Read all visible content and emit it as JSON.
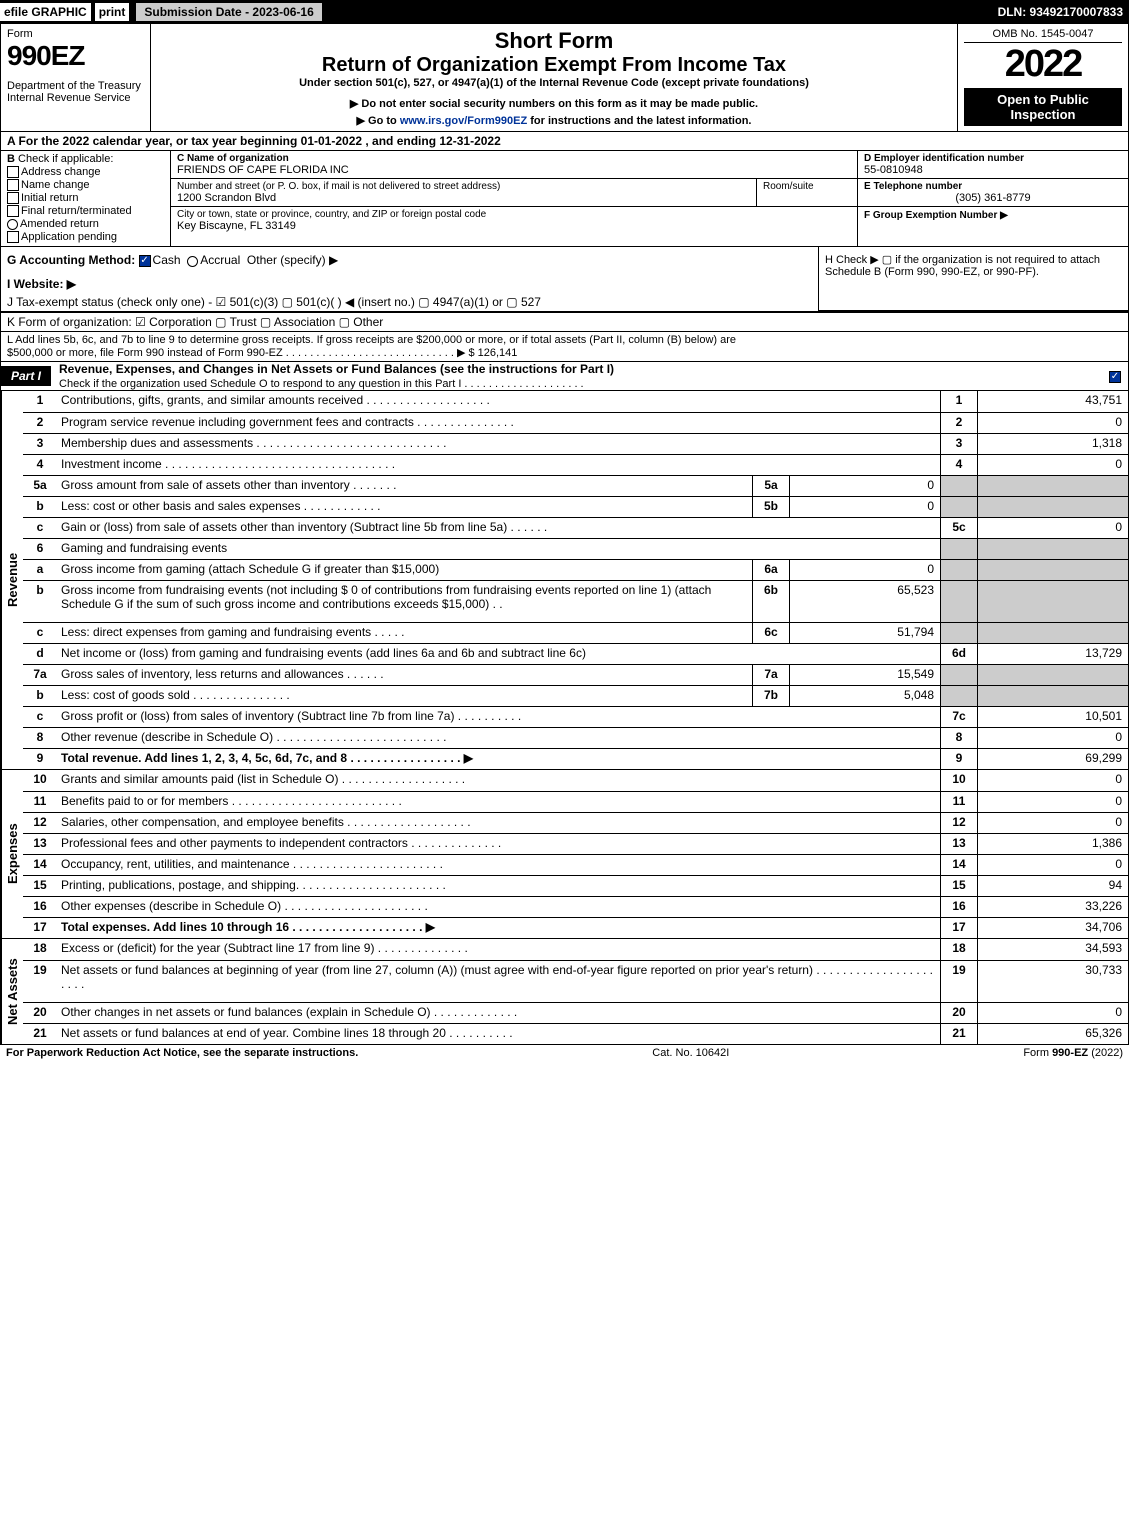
{
  "header": {
    "efile": "efile",
    "graphic": "GRAPHIC",
    "print": "print",
    "submission_label": "Submission Date - 2023-06-16",
    "dln": "DLN: 93492170007833"
  },
  "topbox": {
    "form_word": "Form",
    "form_num": "990EZ",
    "dept1": "Department of the Treasury",
    "dept2": "Internal Revenue Service",
    "short_form": "Short Form",
    "title": "Return of Organization Exempt From Income Tax",
    "under": "Under section 501(c), 527, or 4947(a)(1) of the Internal Revenue Code (except private foundations)",
    "warn": "▶ Do not enter social security numbers on this form as it may be made public.",
    "goto_pre": "▶ Go to ",
    "goto_link": "www.irs.gov/Form990EZ",
    "goto_post": " for instructions and the latest information.",
    "omb": "OMB No. 1545-0047",
    "year": "2022",
    "insp1": "Open to Public",
    "insp2": "Inspection"
  },
  "A": "A  For the 2022 calendar year, or tax year beginning 01-01-2022 , and ending 12-31-2022",
  "B": {
    "label": "B",
    "check_if": "Check if applicable:",
    "items": [
      {
        "label": "Address change",
        "checked": false
      },
      {
        "label": "Name change",
        "checked": false
      },
      {
        "label": "Initial return",
        "checked": false
      },
      {
        "label": "Final return/terminated",
        "checked": false
      },
      {
        "label": "Amended return",
        "checked": false
      },
      {
        "label": "Application pending",
        "checked": false
      }
    ]
  },
  "C": {
    "name_label": "C Name of organization",
    "name": "FRIENDS OF CAPE FLORIDA INC",
    "street_label": "Number and street (or P. O. box, if mail is not delivered to street address)",
    "street": "1200 Scrandon Blvd",
    "room_label": "Room/suite",
    "city_label": "City or town, state or province, country, and ZIP or foreign postal code",
    "city": "Key Biscayne, FL  33149"
  },
  "D": {
    "label": "D Employer identification number",
    "value": "55-0810948"
  },
  "E": {
    "label": "E Telephone number",
    "value": "(305) 361-8779"
  },
  "F": {
    "label": "F Group Exemption Number   ▶",
    "value": ""
  },
  "G": {
    "label": "G Accounting Method:",
    "cash": "Cash",
    "accrual": "Accrual",
    "other": "Other (specify) ▶"
  },
  "H": "H   Check ▶  ▢  if the organization is not required to attach Schedule B (Form 990, 990-EZ, or 990-PF).",
  "I": "I Website: ▶",
  "J": "J Tax-exempt status (check only one) -  ☑ 501(c)(3)  ▢ 501(c)(  ) ◀ (insert no.)  ▢ 4947(a)(1) or  ▢ 527",
  "K": "K Form of organization:   ☑ Corporation   ▢ Trust   ▢ Association   ▢ Other",
  "L": {
    "text1": "L Add lines 5b, 6c, and 7b to line 9 to determine gross receipts. If gross receipts are $200,000 or more, or if total assets (Part II, column (B) below) are",
    "text2": "$500,000 or more, file Form 990 instead of Form 990-EZ  .  .  .  .  .  .  .  .  .  .  .  .  .  .  .  .  .  .  .  .  .  .  .  .  .  .  .  .  ▶ $ 126,141"
  },
  "partI": {
    "tag": "Part I",
    "title": "Revenue, Expenses, and Changes in Net Assets or Fund Balances (see the instructions for Part I)",
    "sub": "Check if the organization used Schedule O to respond to any question in this Part I  .  .  .  .  .  .  .  .  .  .  .  .  .  .  .  .  .  .  .  .",
    "checked": true
  },
  "revenue_label": "Revenue",
  "expenses_label": "Expenses",
  "netassets_label": "Net Assets",
  "rows_rev": [
    {
      "n": "1",
      "desc": "Contributions, gifts, grants, and similar amounts received  .  .  .  .  .  .  .  .  .  .  .  .  .  .  .  .  .  .  .",
      "ln": "1",
      "val": "43,751"
    },
    {
      "n": "2",
      "desc": "Program service revenue including government fees and contracts  .  .  .  .  .  .  .  .  .  .  .  .  .  .  .",
      "ln": "2",
      "val": "0"
    },
    {
      "n": "3",
      "desc": "Membership dues and assessments  .  .  .  .  .  .  .  .  .  .  .  .  .  .  .  .  .  .  .  .  .  .  .  .  .  .  .  .  .",
      "ln": "3",
      "val": "1,318"
    },
    {
      "n": "4",
      "desc": "Investment income  .  .  .  .  .  .  .  .  .  .  .  .  .  .  .  .  .  .  .  .  .  .  .  .  .  .  .  .  .  .  .  .  .  .  .",
      "ln": "4",
      "val": "0"
    },
    {
      "n": "5a",
      "desc": "Gross amount from sale of assets other than inventory  .  .  .  .  .  .  .",
      "sub": "5a",
      "subval": "0",
      "ln": "",
      "val": "",
      "shade": true
    },
    {
      "n": "b",
      "desc": "Less: cost or other basis and sales expenses  .  .  .  .  .  .  .  .  .  .  .  .",
      "sub": "5b",
      "subval": "0",
      "ln": "",
      "val": "",
      "shade": true
    },
    {
      "n": "c",
      "desc": "Gain or (loss) from sale of assets other than inventory (Subtract line 5b from line 5a)  .  .  .  .  .  .",
      "ln": "5c",
      "val": "0"
    },
    {
      "n": "6",
      "desc": "Gaming and fundraising events",
      "ln": "",
      "val": "",
      "shade": true
    },
    {
      "n": "a",
      "desc": "Gross income from gaming (attach Schedule G if greater than $15,000)",
      "sub": "6a",
      "subval": "0",
      "ln": "",
      "val": "",
      "shade": true
    },
    {
      "n": "b",
      "desc": "Gross income from fundraising events (not including $ 0 of contributions from fundraising events reported on line 1) (attach Schedule G if the sum of such gross income and contributions exceeds $15,000)    .  .",
      "sub": "6b",
      "subval": "65,523",
      "ln": "",
      "val": "",
      "shade": true,
      "tallrow": true
    },
    {
      "n": "c",
      "desc": "Less: direct expenses from gaming and fundraising events   .  .  .  .  .",
      "sub": "6c",
      "subval": "51,794",
      "ln": "",
      "val": "",
      "shade": true
    },
    {
      "n": "d",
      "desc": "Net income or (loss) from gaming and fundraising events (add lines 6a and 6b and subtract line 6c)",
      "ln": "6d",
      "val": "13,729"
    },
    {
      "n": "7a",
      "desc": "Gross sales of inventory, less returns and allowances  .  .  .  .  .  .",
      "sub": "7a",
      "subval": "15,549",
      "ln": "",
      "val": "",
      "shade": true
    },
    {
      "n": "b",
      "desc": "Less: cost of goods sold       .  .  .  .  .  .  .  .  .  .  .  .  .  .  .",
      "sub": "7b",
      "subval": "5,048",
      "ln": "",
      "val": "",
      "shade": true
    },
    {
      "n": "c",
      "desc": "Gross profit or (loss) from sales of inventory (Subtract line 7b from line 7a)  .  .  .  .  .  .  .  .  .  .",
      "ln": "7c",
      "val": "10,501"
    },
    {
      "n": "8",
      "desc": "Other revenue (describe in Schedule O)  .  .  .  .  .  .  .  .  .  .  .  .  .  .  .  .  .  .  .  .  .  .  .  .  .  .",
      "ln": "8",
      "val": "0"
    },
    {
      "n": "9",
      "desc": "Total revenue. Add lines 1, 2, 3, 4, 5c, 6d, 7c, and 8   .  .  .  .  .  .  .  .  .  .  .  .  .  .  .  .  .   ▶",
      "ln": "9",
      "val": "69,299",
      "bold": true
    }
  ],
  "rows_exp": [
    {
      "n": "10",
      "desc": "Grants and similar amounts paid (list in Schedule O)  .  .  .  .  .  .  .  .  .  .  .  .  .  .  .  .  .  .  .",
      "ln": "10",
      "val": "0"
    },
    {
      "n": "11",
      "desc": "Benefits paid to or for members      .  .  .  .  .  .  .  .  .  .  .  .  .  .  .  .  .  .  .  .  .  .  .  .  .  .",
      "ln": "11",
      "val": "0"
    },
    {
      "n": "12",
      "desc": "Salaries, other compensation, and employee benefits  .  .  .  .  .  .  .  .  .  .  .  .  .  .  .  .  .  .  .",
      "ln": "12",
      "val": "0"
    },
    {
      "n": "13",
      "desc": "Professional fees and other payments to independent contractors  .  .  .  .  .  .  .  .  .  .  .  .  .  .",
      "ln": "13",
      "val": "1,386"
    },
    {
      "n": "14",
      "desc": "Occupancy, rent, utilities, and maintenance  .  .  .  .  .  .  .  .  .  .  .  .  .  .  .  .  .  .  .  .  .  .  .",
      "ln": "14",
      "val": "0"
    },
    {
      "n": "15",
      "desc": "Printing, publications, postage, and shipping.  .  .  .  .  .  .  .  .  .  .  .  .  .  .  .  .  .  .  .  .  .  .",
      "ln": "15",
      "val": "94"
    },
    {
      "n": "16",
      "desc": "Other expenses (describe in Schedule O)       .  .  .  .  .  .  .  .  .  .  .  .  .  .  .  .  .  .  .  .  .  .",
      "ln": "16",
      "val": "33,226"
    },
    {
      "n": "17",
      "desc": "Total expenses. Add lines 10 through 16      .  .  .  .  .  .  .  .  .  .  .  .  .  .  .  .  .  .  .  .   ▶",
      "ln": "17",
      "val": "34,706",
      "bold": true
    }
  ],
  "rows_net": [
    {
      "n": "18",
      "desc": "Excess or (deficit) for the year (Subtract line 17 from line 9)       .  .  .  .  .  .  .  .  .  .  .  .  .  .",
      "ln": "18",
      "val": "34,593"
    },
    {
      "n": "19",
      "desc": "Net assets or fund balances at beginning of year (from line 27, column (A)) (must agree with end-of-year figure reported on prior year's return)  .  .  .  .  .  .  .  .  .  .  .  .  .  .  .  .  .  .  .  .  .  .",
      "ln": "19",
      "val": "30,733",
      "tallrow": true
    },
    {
      "n": "20",
      "desc": "Other changes in net assets or fund balances (explain in Schedule O)  .  .  .  .  .  .  .  .  .  .  .  .  .",
      "ln": "20",
      "val": "0"
    },
    {
      "n": "21",
      "desc": "Net assets or fund balances at end of year. Combine lines 18 through 20  .  .  .  .  .  .  .  .  .  .",
      "ln": "21",
      "val": "65,326"
    }
  ],
  "footer": {
    "left": "For Paperwork Reduction Act Notice, see the separate instructions.",
    "mid": "Cat. No. 10642I",
    "right_pre": "Form ",
    "right_bold": "990-EZ",
    "right_post": " (2022)"
  },
  "colors": {
    "black": "#000000",
    "shade": "#cccccc",
    "link": "#003399"
  }
}
